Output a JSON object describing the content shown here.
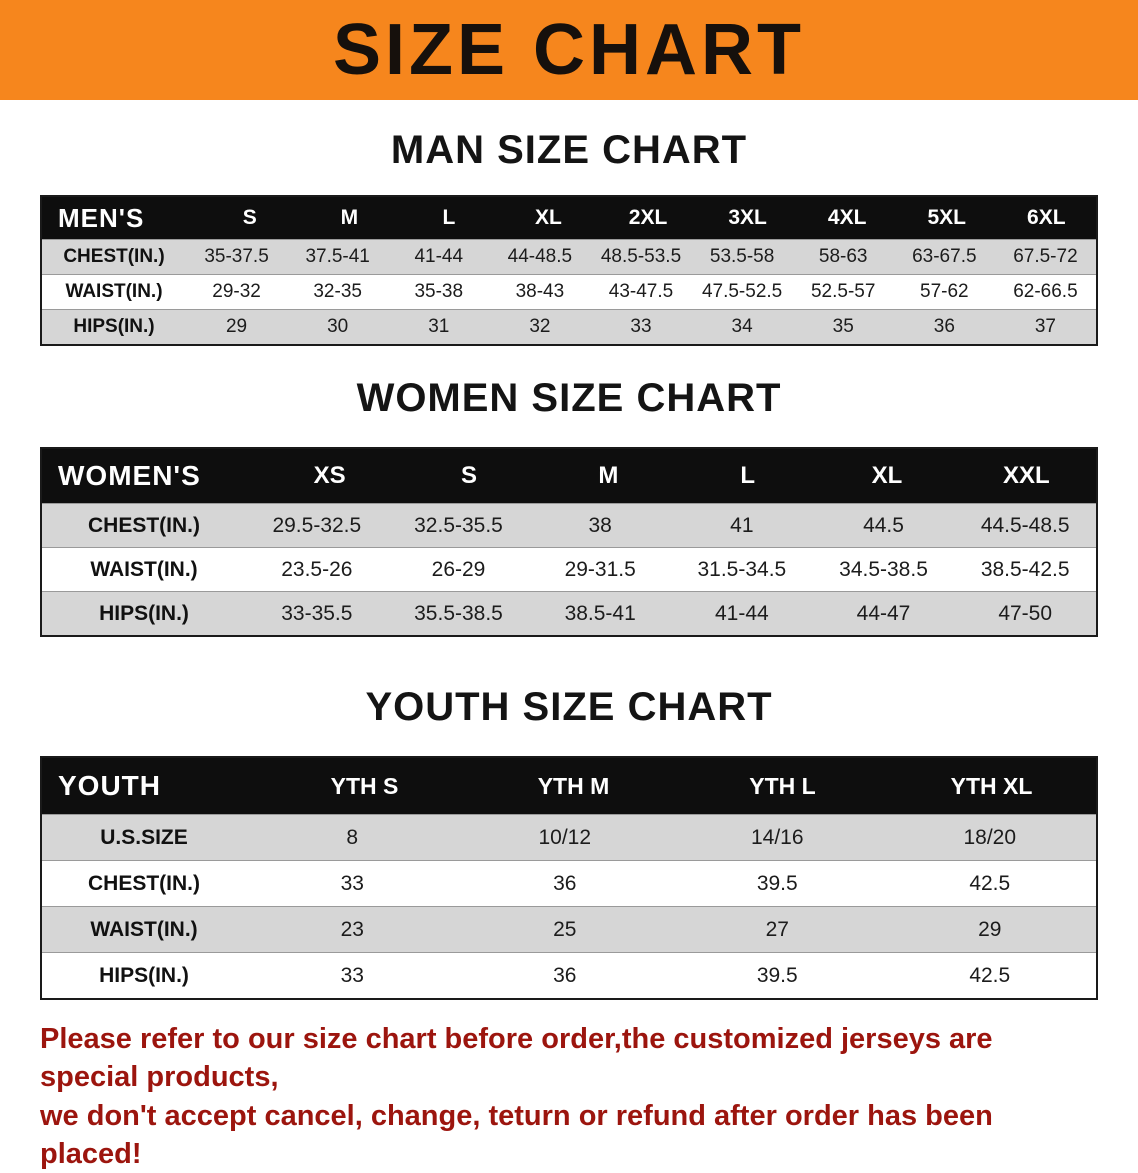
{
  "banner": {
    "title": "SIZE CHART"
  },
  "theme": {
    "banner_bg": "#f6861d",
    "banner_text": "#16100c",
    "header_row_bg": "#0e0e0e",
    "header_row_text": "#ffffff",
    "row_shade": "#d6d6d6",
    "disclaimer_color": "#9c150e"
  },
  "sections": [
    {
      "id": "men",
      "heading": "MAN SIZE CHART",
      "table": {
        "corner": "MEN'S",
        "columns": [
          "S",
          "M",
          "L",
          "XL",
          "2XL",
          "3XL",
          "4XL",
          "5XL",
          "6XL"
        ],
        "rows": [
          {
            "label": "CHEST(IN.)",
            "values": [
              "35-37.5",
              "37.5-41",
              "41-44",
              "44-48.5",
              "48.5-53.5",
              "53.5-58",
              "58-63",
              "63-67.5",
              "67.5-72"
            ]
          },
          {
            "label": "WAIST(IN.)",
            "values": [
              "29-32",
              "32-35",
              "35-38",
              "38-43",
              "43-47.5",
              "47.5-52.5",
              "52.5-57",
              "57-62",
              "62-66.5"
            ]
          },
          {
            "label": "HIPS(IN.)",
            "values": [
              "29",
              "30",
              "31",
              "32",
              "33",
              "34",
              "35",
              "36",
              "37"
            ]
          }
        ]
      }
    },
    {
      "id": "women",
      "heading": "WOMEN SIZE CHART",
      "table": {
        "corner": "WOMEN'S",
        "columns": [
          "XS",
          "S",
          "M",
          "L",
          "XL",
          "XXL"
        ],
        "rows": [
          {
            "label": "CHEST(IN.)",
            "values": [
              "29.5-32.5",
              "32.5-35.5",
              "38",
              "41",
              "44.5",
              "44.5-48.5"
            ]
          },
          {
            "label": "WAIST(IN.)",
            "values": [
              "23.5-26",
              "26-29",
              "29-31.5",
              "31.5-34.5",
              "34.5-38.5",
              "38.5-42.5"
            ]
          },
          {
            "label": "HIPS(IN.)",
            "values": [
              "33-35.5",
              "35.5-38.5",
              "38.5-41",
              "41-44",
              "44-47",
              "47-50"
            ]
          }
        ]
      }
    },
    {
      "id": "youth",
      "heading": "YOUTH SIZE CHART",
      "table": {
        "corner": "YOUTH",
        "columns": [
          "YTH S",
          "YTH M",
          "YTH L",
          "YTH XL"
        ],
        "rows": [
          {
            "label": "U.S.SIZE",
            "values": [
              "8",
              "10/12",
              "14/16",
              "18/20"
            ]
          },
          {
            "label": "CHEST(IN.)",
            "values": [
              "33",
              "36",
              "39.5",
              "42.5"
            ]
          },
          {
            "label": "WAIST(IN.)",
            "values": [
              "23",
              "25",
              "27",
              "29"
            ]
          },
          {
            "label": "HIPS(IN.)",
            "values": [
              "33",
              "36",
              "39.5",
              "42.5"
            ]
          }
        ]
      }
    }
  ],
  "disclaimer": {
    "line1": "Please refer to our size chart before order,the customized jerseys are special products,",
    "line2": "we don't accept cancel, change, teturn or refund after order has been placed!"
  }
}
